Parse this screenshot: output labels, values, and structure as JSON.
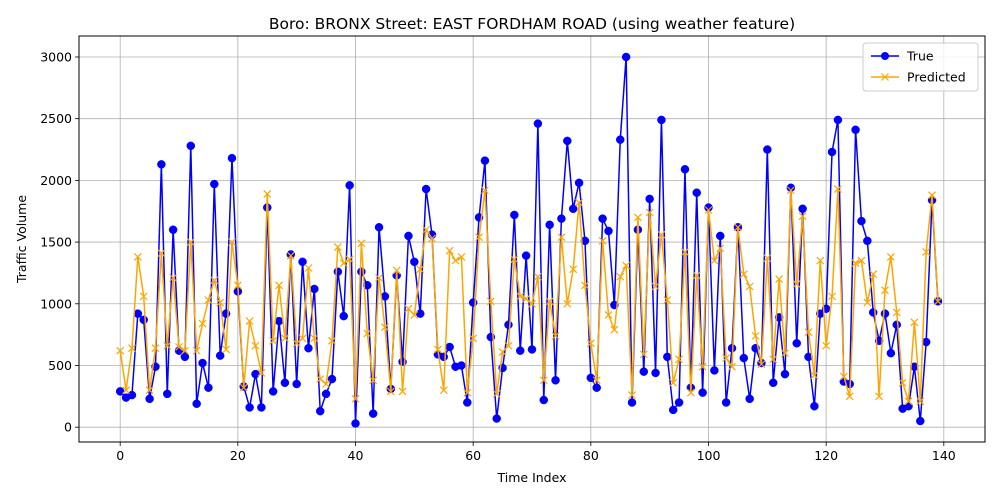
{
  "chart_data": {
    "type": "line",
    "title": "Boro: BRONX Street: EAST FORDHAM ROAD (using weather feature)",
    "xlabel": "Time Index",
    "ylabel": "Traffic Volume",
    "xlim": [
      -7,
      147
    ],
    "ylim": [
      -120,
      3170
    ],
    "xticks": [
      0,
      20,
      40,
      60,
      80,
      100,
      120,
      140
    ],
    "yticks": [
      0,
      500,
      1000,
      1500,
      2000,
      2500,
      3000
    ],
    "grid": true,
    "legend_position": "top-right",
    "x": [
      0,
      1,
      2,
      3,
      4,
      5,
      6,
      7,
      8,
      9,
      10,
      11,
      12,
      13,
      14,
      15,
      16,
      17,
      18,
      19,
      20,
      21,
      22,
      23,
      24,
      25,
      26,
      27,
      28,
      29,
      30,
      31,
      32,
      33,
      34,
      35,
      36,
      37,
      38,
      39,
      40,
      41,
      42,
      43,
      44,
      45,
      46,
      47,
      48,
      49,
      50,
      51,
      52,
      53,
      54,
      55,
      56,
      57,
      58,
      59,
      60,
      61,
      62,
      63,
      64,
      65,
      66,
      67,
      68,
      69,
      70,
      71,
      72,
      73,
      74,
      75,
      76,
      77,
      78,
      79,
      80,
      81,
      82,
      83,
      84,
      85,
      86,
      87,
      88,
      89,
      90,
      91,
      92,
      93,
      94,
      95,
      96,
      97,
      98,
      99,
      100,
      101,
      102,
      103,
      104,
      105,
      106,
      107,
      108,
      109,
      110,
      111,
      112,
      113,
      114,
      115,
      116,
      117,
      118,
      119,
      120,
      121,
      122,
      123,
      124,
      125,
      126,
      127,
      128,
      129,
      130,
      131,
      132,
      133,
      134,
      135,
      136,
      137,
      138,
      139
    ],
    "series": [
      {
        "name": "True",
        "color": "#0000ff",
        "marker": "circle",
        "values": [
          290,
          240,
          260,
          920,
          870,
          230,
          490,
          2130,
          270,
          1600,
          620,
          570,
          2280,
          190,
          520,
          320,
          1970,
          580,
          920,
          2180,
          1100,
          330,
          160,
          430,
          160,
          1780,
          290,
          860,
          360,
          1400,
          350,
          1340,
          640,
          1120,
          130,
          270,
          390,
          1260,
          900,
          1960,
          30,
          1260,
          1150,
          110,
          1620,
          1060,
          310,
          1230,
          530,
          1550,
          1340,
          920,
          1930,
          1560,
          590,
          570,
          650,
          490,
          500,
          200,
          1010,
          1700,
          2160,
          730,
          70,
          480,
          830,
          1720,
          620,
          1390,
          630,
          2460,
          220,
          1640,
          380,
          1690,
          2320,
          1770,
          1980,
          1510,
          400,
          320,
          1690,
          1590,
          990,
          2330,
          3000,
          200,
          1600,
          450,
          1850,
          440,
          2490,
          570,
          140,
          200,
          2090,
          320,
          1900,
          280,
          1780,
          460,
          1550,
          200,
          640,
          1620,
          560,
          230,
          640,
          520,
          2250,
          360,
          890,
          430,
          1940,
          680,
          1770,
          570,
          170,
          920,
          960,
          2230,
          2490,
          370,
          350,
          2410,
          1670,
          1510,
          930,
          700,
          920,
          600,
          830,
          150,
          170,
          490,
          50,
          690,
          1840,
          1020
        ]
      },
      {
        "name": "Predicted",
        "color": "#ffa500",
        "marker": "x",
        "values": [
          620,
          300,
          640,
          1380,
          1060,
          300,
          640,
          1410,
          660,
          1210,
          650,
          620,
          1500,
          620,
          840,
          1030,
          1190,
          1010,
          630,
          1500,
          1150,
          320,
          860,
          660,
          440,
          1890,
          700,
          1150,
          720,
          1390,
          680,
          720,
          1290,
          720,
          390,
          350,
          700,
          1460,
          1330,
          1360,
          230,
          1490,
          760,
          380,
          1210,
          810,
          290,
          1270,
          290,
          960,
          910,
          1280,
          1600,
          1530,
          630,
          300,
          1430,
          1350,
          1380,
          280,
          720,
          1540,
          1920,
          1020,
          270,
          610,
          660,
          1360,
          1060,
          1040,
          1000,
          1220,
          380,
          1020,
          740,
          1540,
          1000,
          1280,
          1820,
          1150,
          680,
          380,
          1510,
          910,
          790,
          1220,
          1310,
          260,
          1700,
          590,
          1740,
          1140,
          1560,
          1030,
          360,
          550,
          1420,
          280,
          1230,
          490,
          1760,
          1350,
          1450,
          560,
          490,
          1620,
          1240,
          1140,
          740,
          510,
          1370,
          550,
          1200,
          600,
          1920,
          1160,
          1710,
          770,
          420,
          1350,
          660,
          1060,
          1930,
          410,
          250,
          1330,
          1350,
          1010,
          1240,
          250,
          1110,
          1380,
          930,
          360,
          210,
          850,
          210,
          1420,
          1880,
          1020
        ]
      }
    ]
  }
}
